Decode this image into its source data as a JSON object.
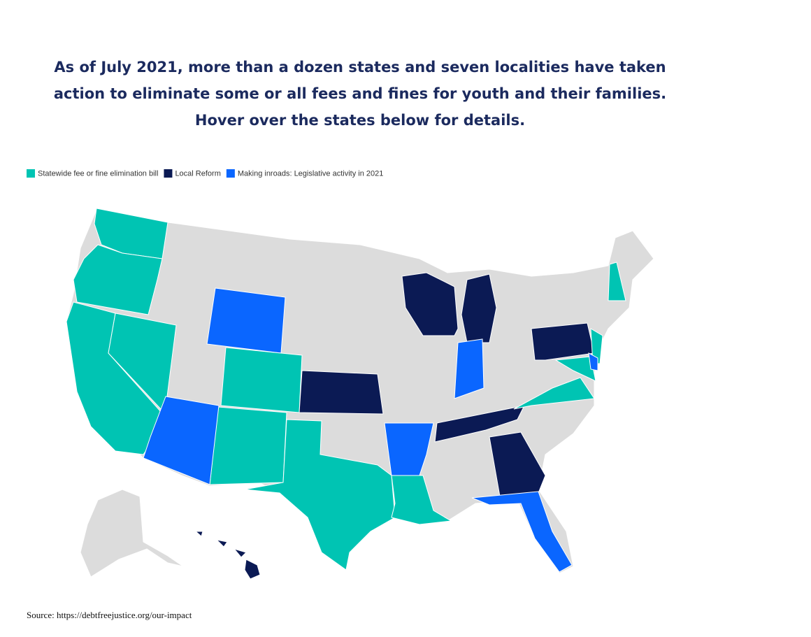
{
  "title": {
    "lines": [
      "As of July 2021, more than a dozen states and seven localities have taken",
      "action to eliminate some or all fees and fines for youth and their families.",
      "Hover over the states below for details."
    ]
  },
  "legend": [
    {
      "label": "Statewide fee or fine elimination bill",
      "color": "#00c4b3"
    },
    {
      "label": "Local Reform",
      "color": "#0b1a54"
    },
    {
      "label": "Making inroads: Legislative activity in 2021",
      "color": "#0a66ff"
    }
  ],
  "source": "Source: https://debtfreejustice.org/our-impact"
}
